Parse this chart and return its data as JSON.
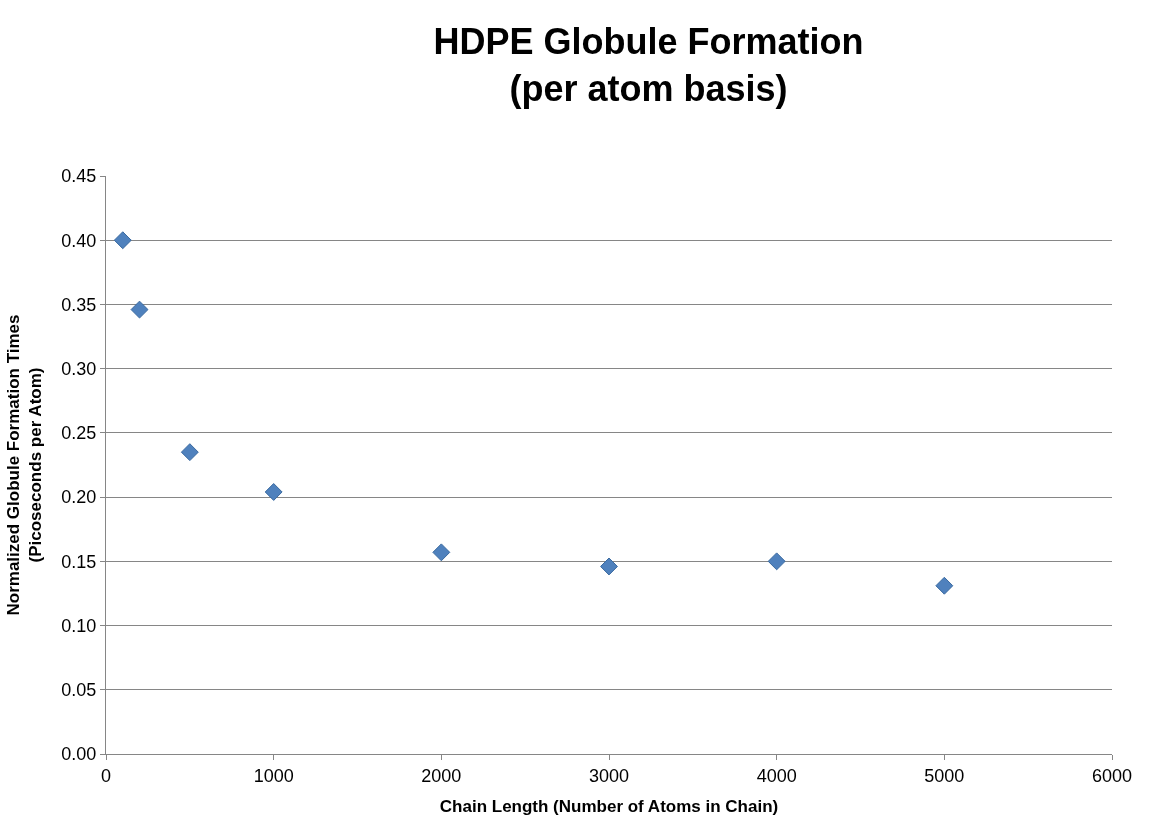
{
  "chart_data": {
    "type": "scatter",
    "title": "HDPE Globule Formation\n(per atom basis)",
    "xlabel": "Chain Length (Number of Atoms in Chain)",
    "ylabel": "Normalized Globule Formation Times\n(Picoseconds per Atom)",
    "x": [
      100,
      200,
      500,
      1000,
      2000,
      3000,
      4000,
      5000
    ],
    "series": [
      {
        "color": "#4f81bd",
        "values": [
          0.4,
          0.346,
          0.235,
          0.204,
          0.157,
          0.146,
          0.15,
          0.131
        ]
      }
    ],
    "xlim": [
      0,
      6000
    ],
    "xticks": [
      0,
      1000,
      2000,
      3000,
      4000,
      5000,
      6000
    ],
    "ylim": [
      0,
      0.45
    ],
    "yticks": [
      {
        "value": 0,
        "label": "0.00"
      },
      {
        "value": 0.05,
        "label": "0.05"
      },
      {
        "value": 0.1,
        "label": "0.10"
      },
      {
        "value": 0.15,
        "label": "0.15"
      },
      {
        "value": 0.2,
        "label": "0.20"
      },
      {
        "value": 0.25,
        "label": "0.25"
      },
      {
        "value": 0.3,
        "label": "0.30"
      },
      {
        "value": 0.35,
        "label": "0.35"
      },
      {
        "value": 0.4,
        "label": "0.40"
      },
      {
        "value": 0.45,
        "label": "0.45"
      }
    ],
    "grid": "y",
    "marker": "diamond",
    "legend": false
  }
}
